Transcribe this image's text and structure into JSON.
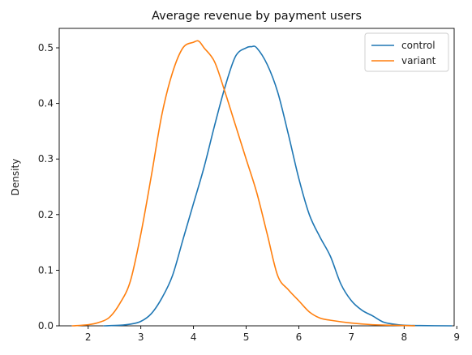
{
  "chart_data": {
    "type": "line",
    "title": "Average revenue by payment users",
    "xlabel": "",
    "ylabel": "Density",
    "xlim": [
      1.45,
      8.95
    ],
    "ylim": [
      0.0,
      0.535
    ],
    "xticks": [
      2,
      3,
      4,
      5,
      6,
      7,
      8,
      9
    ],
    "yticks": [
      0.0,
      0.1,
      0.2,
      0.3,
      0.4,
      0.5
    ],
    "grid": false,
    "legend_position": "top-right",
    "series": [
      {
        "name": "control",
        "color": "#1f77b4",
        "x": [
          2.3,
          2.6,
          2.8,
          3.0,
          3.2,
          3.4,
          3.6,
          3.8,
          4.0,
          4.2,
          4.4,
          4.6,
          4.8,
          5.0,
          5.1,
          5.2,
          5.4,
          5.6,
          5.8,
          6.0,
          6.2,
          6.4,
          6.6,
          6.8,
          7.0,
          7.2,
          7.4,
          7.6,
          7.8,
          8.0,
          8.3,
          8.9
        ],
        "y": [
          0.0,
          0.001,
          0.003,
          0.008,
          0.022,
          0.05,
          0.09,
          0.155,
          0.22,
          0.285,
          0.36,
          0.43,
          0.485,
          0.5,
          0.502,
          0.5,
          0.47,
          0.42,
          0.345,
          0.265,
          0.2,
          0.16,
          0.125,
          0.075,
          0.045,
          0.028,
          0.018,
          0.007,
          0.003,
          0.001,
          0.0004,
          0.0
        ]
      },
      {
        "name": "variant",
        "color": "#ff7f0e",
        "x": [
          1.7,
          2.0,
          2.2,
          2.4,
          2.6,
          2.8,
          3.0,
          3.2,
          3.4,
          3.6,
          3.8,
          4.0,
          4.1,
          4.2,
          4.4,
          4.6,
          4.8,
          5.0,
          5.2,
          5.4,
          5.6,
          5.8,
          6.0,
          6.2,
          6.4,
          6.6,
          7.0,
          7.4,
          7.8,
          8.2
        ],
        "y": [
          0.0,
          0.002,
          0.006,
          0.015,
          0.04,
          0.08,
          0.165,
          0.27,
          0.38,
          0.455,
          0.5,
          0.51,
          0.512,
          0.5,
          0.475,
          0.42,
          0.36,
          0.3,
          0.24,
          0.165,
          0.09,
          0.065,
          0.045,
          0.025,
          0.014,
          0.01,
          0.005,
          0.002,
          0.001,
          0.0
        ]
      }
    ]
  }
}
